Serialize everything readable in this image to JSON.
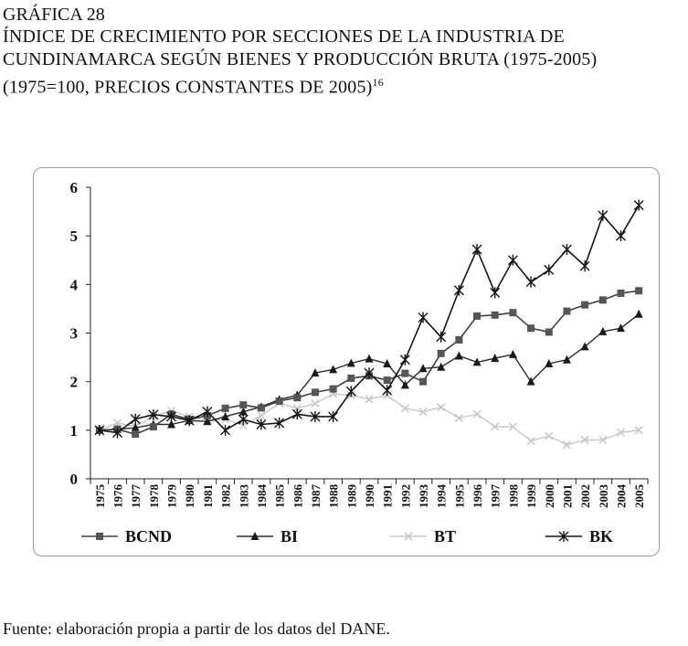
{
  "caption": {
    "label": "GRÁFICA 28",
    "title_line1": "ÍNDICE DE CRECIMIENTO POR SECCIONES DE LA INDUSTRIA DE",
    "title_line2": "CUNDINAMARCA SEGÚN BIENES Y PRODUCCIÓN BRUTA (1975-2005)",
    "title_line3": "(1975=100, PRECIOS CONSTANTES DE 2005)",
    "footnote_ref": "16"
  },
  "source": "Fuente: elaboración propia a partir de los datos del DANE.",
  "chart_data": {
    "type": "line",
    "title": "",
    "xlabel": "",
    "ylabel": "",
    "ylim": [
      0,
      6
    ],
    "yticks": [
      "0",
      "1",
      "2",
      "3",
      "4",
      "5",
      "6"
    ],
    "grid": false,
    "legend_position": "bottom",
    "categories": [
      "1975",
      "1976",
      "1977",
      "1978",
      "1979",
      "1980",
      "1981",
      "1982",
      "1983",
      "1984",
      "1985",
      "1986",
      "1987",
      "1988",
      "1989",
      "1990",
      "1991",
      "1992",
      "1993",
      "1994",
      "1995",
      "1996",
      "1997",
      "1998",
      "1999",
      "2000",
      "2001",
      "2002",
      "2003",
      "2004",
      "2005"
    ],
    "series": [
      {
        "name": "BCND",
        "color": "#404040",
        "marker": "square",
        "values": [
          1.0,
          1.02,
          0.92,
          1.07,
          1.33,
          1.22,
          1.3,
          1.45,
          1.52,
          1.46,
          1.6,
          1.67,
          1.78,
          1.85,
          2.07,
          2.12,
          2.03,
          2.17,
          2.0,
          2.58,
          2.86,
          3.35,
          3.37,
          3.42,
          3.1,
          3.02,
          3.45,
          3.58,
          3.68,
          3.82,
          3.87
        ]
      },
      {
        "name": "BI",
        "color": "#2a2a2a",
        "marker": "triangle",
        "values": [
          1.0,
          1.02,
          1.05,
          1.12,
          1.12,
          1.2,
          1.18,
          1.28,
          1.38,
          1.48,
          1.63,
          1.72,
          2.18,
          2.25,
          2.38,
          2.47,
          2.37,
          1.93,
          2.27,
          2.3,
          2.53,
          2.4,
          2.48,
          2.56,
          2.0,
          2.37,
          2.45,
          2.72,
          3.03,
          3.1,
          3.39
        ]
      },
      {
        "name": "BT",
        "color": "#c8c8c8",
        "marker": "x",
        "values": [
          1.0,
          1.15,
          1.08,
          1.28,
          1.4,
          1.28,
          1.2,
          1.22,
          1.1,
          1.3,
          1.55,
          1.45,
          1.55,
          1.75,
          1.72,
          1.64,
          1.72,
          1.45,
          1.38,
          1.47,
          1.25,
          1.33,
          1.07,
          1.07,
          0.78,
          0.88,
          0.7,
          0.8,
          0.8,
          0.95,
          1.0
        ]
      },
      {
        "name": "BK",
        "color": "#151515",
        "marker": "star",
        "values": [
          1.0,
          0.95,
          1.23,
          1.32,
          1.28,
          1.2,
          1.38,
          1.0,
          1.22,
          1.12,
          1.15,
          1.33,
          1.28,
          1.28,
          1.8,
          2.18,
          1.82,
          2.45,
          3.32,
          2.92,
          3.88,
          4.72,
          3.83,
          4.5,
          4.05,
          4.3,
          4.72,
          4.38,
          5.42,
          5.0,
          5.63
        ]
      }
    ]
  }
}
